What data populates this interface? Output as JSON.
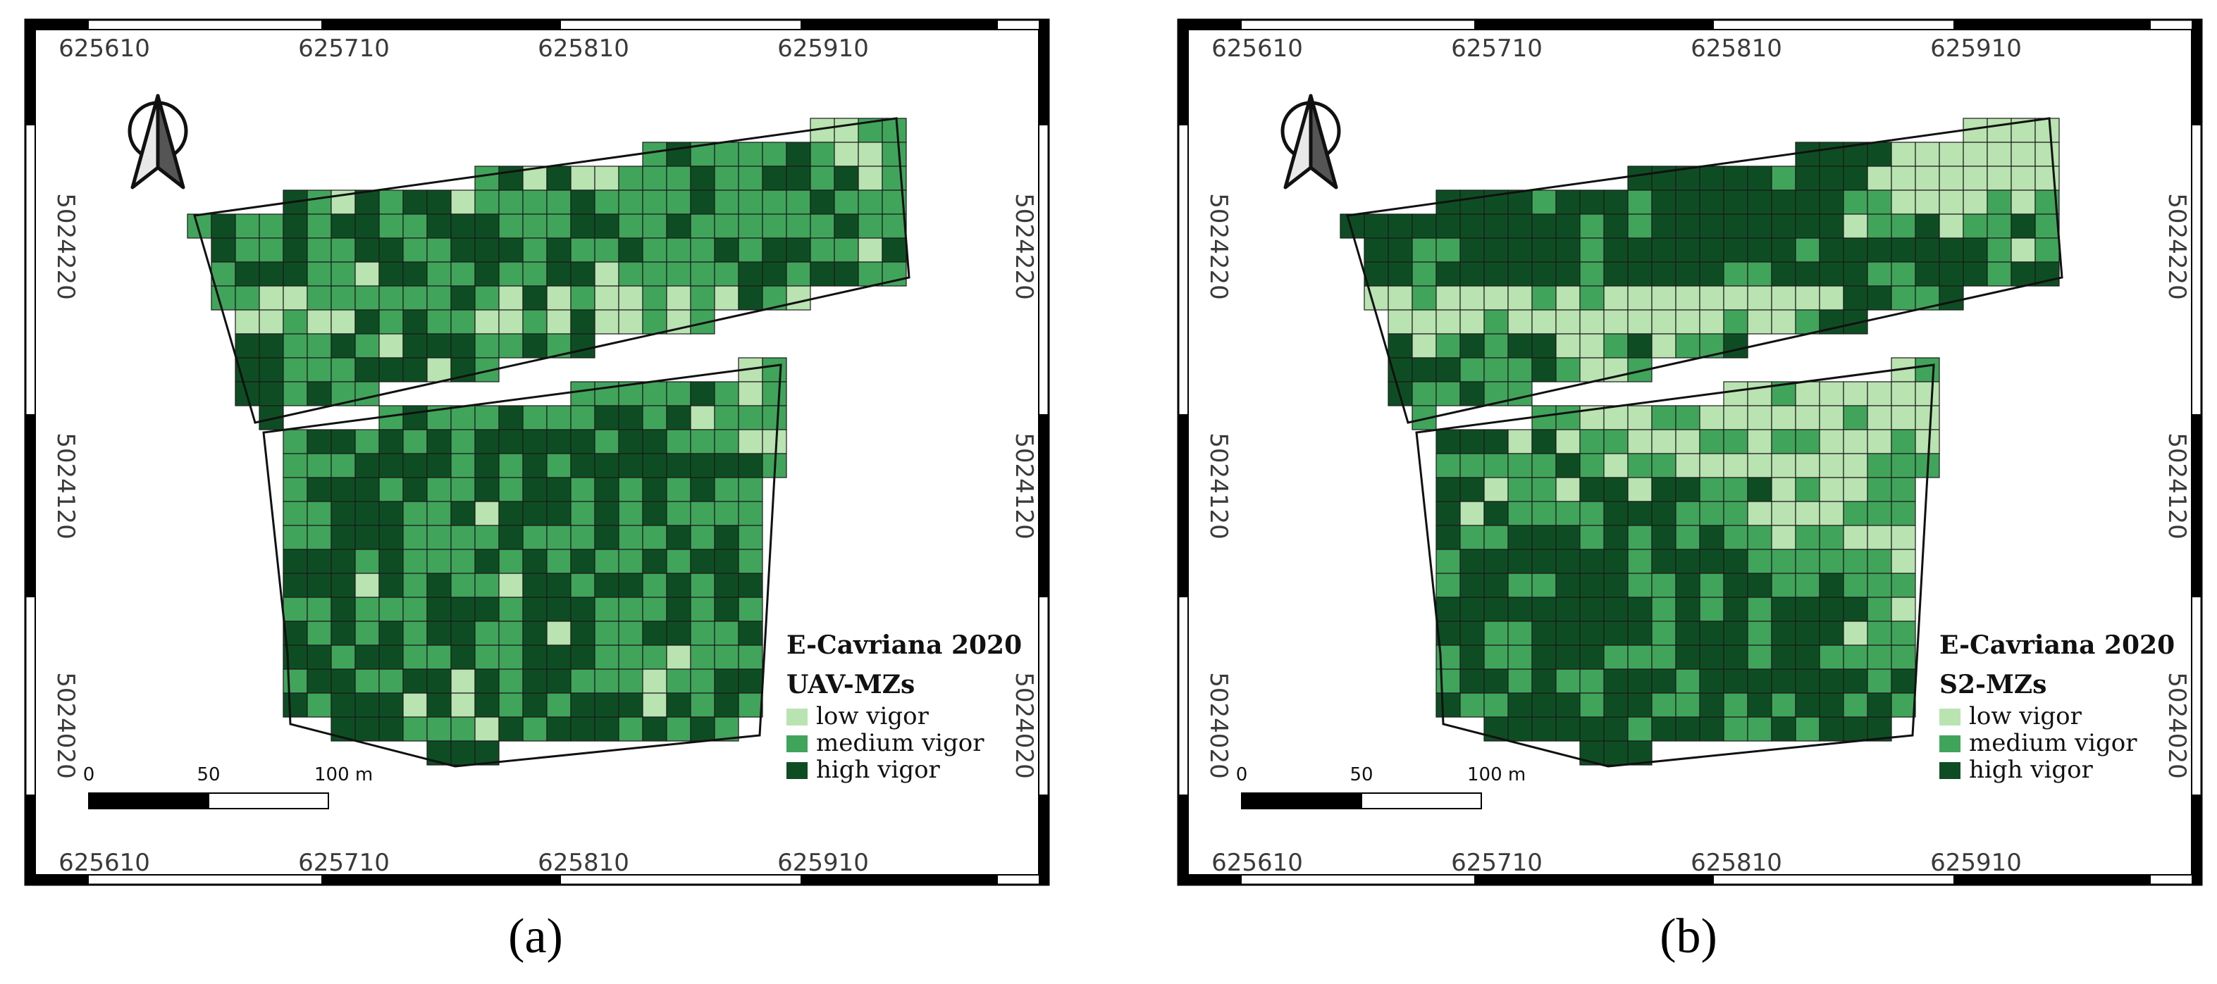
{
  "colors": {
    "low": "#b9e3b1",
    "medium": "#41a45b",
    "high": "#0e4d23",
    "grid": "#1a1a1a"
  },
  "panels": [
    {
      "id": "a",
      "caption": "(a)",
      "legend": {
        "title": "E-Cavriana 2020",
        "subtitle": "UAV-MZs",
        "items": [
          "low vigor",
          "medium vigor",
          "high vigor"
        ]
      },
      "coords": {
        "top": [
          "625610",
          "625710",
          "625810",
          "625910"
        ],
        "bottom": [
          "625610",
          "625710",
          "625810",
          "625910"
        ],
        "left": [
          "5024220",
          "5024120",
          "5024020"
        ],
        "right": [
          "5024220",
          "5024120",
          "5024020"
        ]
      },
      "scale": {
        "labels": [
          "0",
          "50",
          "100 m"
        ]
      }
    },
    {
      "id": "b",
      "caption": "(b)",
      "legend": {
        "title": "E-Cavriana 2020",
        "subtitle": "S2-MZs",
        "items": [
          "low vigor",
          "medium vigor",
          "high vigor"
        ]
      },
      "coords": {
        "top": [
          "625610",
          "625710",
          "625810",
          "625910"
        ],
        "bottom": [
          "625610",
          "625710",
          "625810",
          "625910"
        ],
        "left": [
          "5024220",
          "5024120",
          "5024020"
        ],
        "right": [
          "5024220",
          "5024120",
          "5024020"
        ]
      },
      "scale": {
        "labels": [
          "0",
          "50",
          "100 m"
        ]
      }
    }
  ]
}
